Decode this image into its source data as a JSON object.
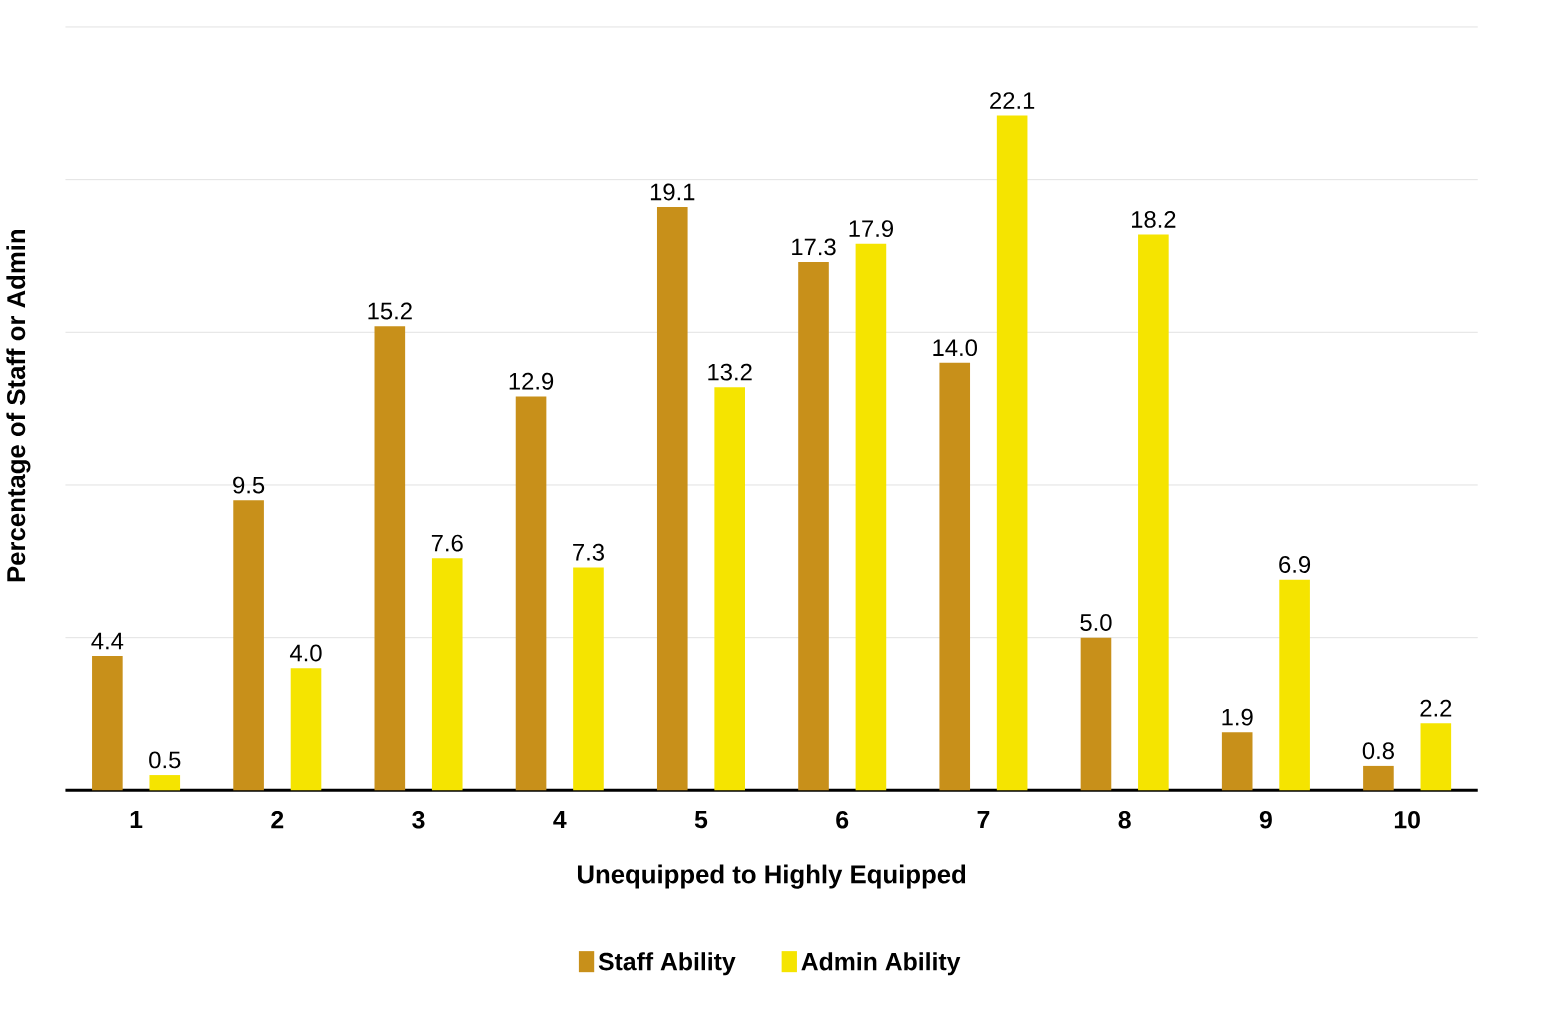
{
  "chart_data": {
    "type": "bar",
    "xlabel": "Unequipped to Highly Equipped",
    "ylabel": "Percentage of Staff or Admin",
    "categories": [
      "1",
      "2",
      "3",
      "4",
      "5",
      "6",
      "7",
      "8",
      "9",
      "10"
    ],
    "series": [
      {
        "name": "Staff Ability",
        "color": "#c8901a",
        "values": [
          4.4,
          9.5,
          15.2,
          12.9,
          19.1,
          17.3,
          14.0,
          5.0,
          1.9,
          0.8
        ],
        "value_labels": [
          "4.4",
          "9.5",
          "15.2",
          "12.9",
          "19.1",
          "17.3",
          "14.0",
          "5.0",
          "1.9",
          "0.8"
        ]
      },
      {
        "name": "Admin Ability",
        "color": "#f5e400",
        "values": [
          0.5,
          4.0,
          7.6,
          7.3,
          13.2,
          17.9,
          22.1,
          18.2,
          6.9,
          2.2
        ],
        "value_labels": [
          "0.5",
          "4.0",
          "7.6",
          "7.3",
          "13.2",
          "17.9",
          "22.1",
          "18.2",
          "6.9",
          "2.2"
        ]
      }
    ],
    "tick_labels": "x",
    "grid": "y",
    "legend": "bottom"
  }
}
